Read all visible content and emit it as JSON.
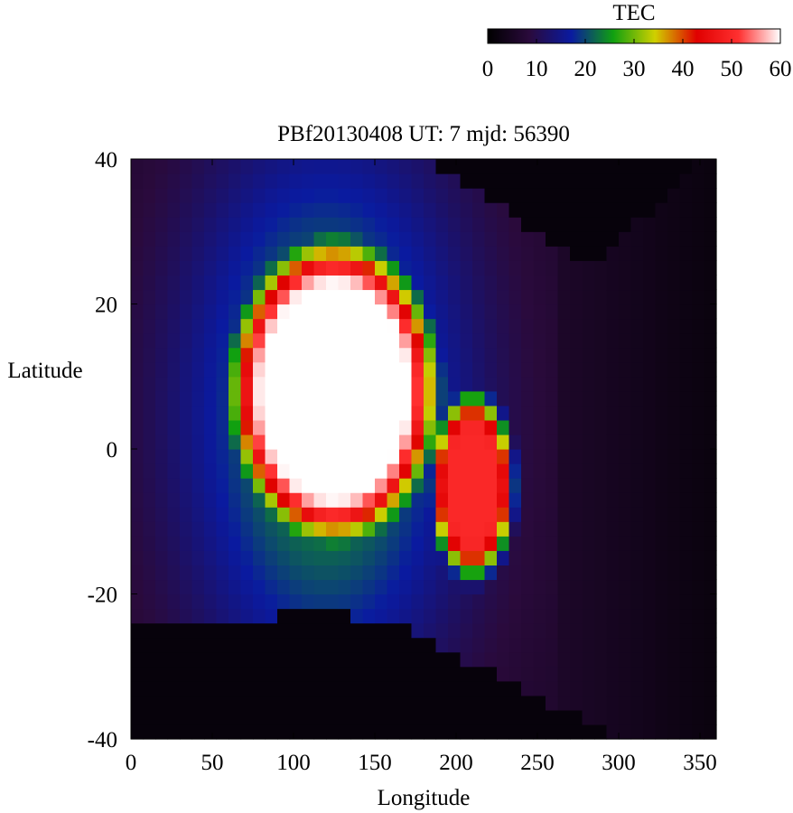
{
  "chart_data": {
    "type": "heatmap",
    "title": "PBf20130408  UT: 7  mjd: 56390",
    "xlabel": "Longitude",
    "ylabel": "Latitude",
    "xlim": [
      0,
      360
    ],
    "ylim": [
      -40,
      40
    ],
    "x_ticks": [
      "0",
      "50",
      "100",
      "150",
      "200",
      "250",
      "300",
      "350"
    ],
    "y_ticks": [
      "40",
      "20",
      "0",
      "-20",
      "-40"
    ],
    "x_tick_values": [
      0,
      50,
      100,
      150,
      200,
      250,
      300,
      350
    ],
    "y_tick_values": [
      40,
      20,
      0,
      -20,
      -40
    ],
    "colorbar": {
      "label": "TEC",
      "range": [
        0,
        60
      ],
      "ticks": [
        "0",
        "10",
        "20",
        "30",
        "40",
        "50",
        "60"
      ],
      "tick_values": [
        0,
        10,
        20,
        30,
        40,
        50,
        60
      ],
      "colormap": [
        "#000000",
        "#2a0a3c",
        "#0a1aa0",
        "#10a010",
        "#d0d000",
        "#e00000",
        "#ff3030",
        "#ffffff"
      ]
    },
    "grid": false,
    "cell_size_deg": [
      7.5,
      2
    ],
    "description_of_field": {
      "peak": {
        "lon_range": [
          70,
          175
        ],
        "lat_range": [
          -8,
          24
        ],
        "value": 60
      },
      "secondary_red_region": {
        "lon_range": [
          190,
          235
        ],
        "lat_range": [
          -15,
          5
        ],
        "value": 48
      },
      "low_region_south": {
        "lat_below": -25,
        "value": 1
      },
      "low_region_northeast": {
        "lon_range": [
          230,
          350
        ],
        "lat_above": 27,
        "value": 1
      }
    }
  }
}
